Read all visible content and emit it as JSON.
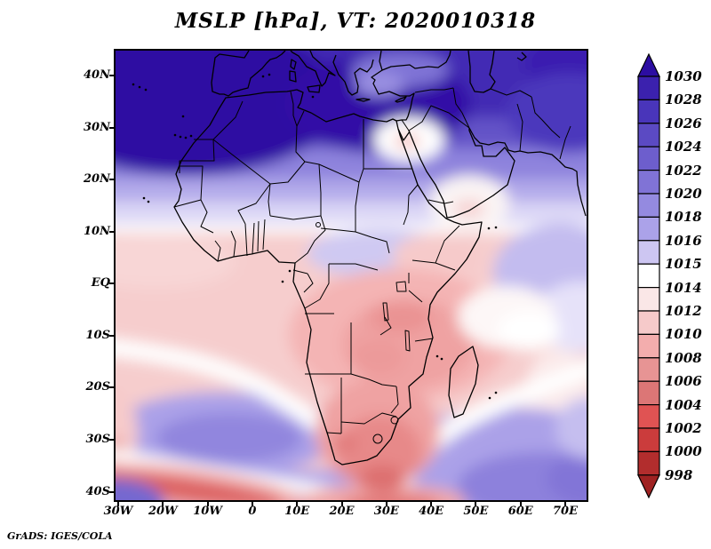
{
  "title": "MSLP [hPa], VT: 2020010318",
  "footer": "GrADS: IGES/COLA",
  "chart_data": {
    "type": "heatmap",
    "title": "MSLP [hPa], VT: 2020010318",
    "variable": "Mean Sea Level Pressure",
    "units": "hPa",
    "valid_time": "2020010318",
    "region": "Africa, southern Europe and Middle East (30W-75E, ~41S-45N)",
    "grid": "off",
    "legend_position": "right colorbar",
    "x_axis": {
      "ticks": [
        "30W",
        "20W",
        "10W",
        "0",
        "10E",
        "20E",
        "30E",
        "40E",
        "50E",
        "60E",
        "70E"
      ]
    },
    "y_axis": {
      "ticks": [
        "40N",
        "30N",
        "20N",
        "10N",
        "EQ",
        "10S",
        "20S",
        "30S",
        "40S"
      ]
    },
    "colorbar": {
      "labels_top_to_bottom": [
        "1030",
        "1028",
        "1026",
        "1024",
        "1022",
        "1020",
        "1018",
        "1016",
        "1015",
        "1014",
        "1012",
        "1010",
        "1008",
        "1006",
        "1004",
        "1002",
        "1000",
        "998"
      ],
      "levels_hPa": [
        998,
        1000,
        1002,
        1004,
        1006,
        1008,
        1010,
        1012,
        1014,
        1015,
        1016,
        1018,
        1020,
        1022,
        1024,
        1026,
        1028,
        1030
      ],
      "colors_top_to_bottom": [
        "#2c0da2",
        "#3b21ae",
        "#4935ba",
        "#5b4ac3",
        "#6d5ecd",
        "#8073d6",
        "#948ae0",
        "#aba2e9",
        "#cdc6f2",
        "#ffffff",
        "#fae7e7",
        "#f6caca",
        "#f3adad",
        "#e79494",
        "#dc7676",
        "#e05353",
        "#cb3c3c",
        "#b22d2d",
        "#9f2222"
      ]
    },
    "field_summary": [
      {
        "feature": "Subtropical high over NE Atlantic, Iberia and NW Africa",
        "approx_pressure_hPa": "1028-1032"
      },
      {
        "feature": "High pressure ridge over Middle East / Caspian region",
        "approx_pressure_hPa": "1022-1030"
      },
      {
        "feature": "Relative low over eastern Mediterranean near Cyprus",
        "approx_pressure_hPa": "1012-1015"
      },
      {
        "feature": "Relative low over central Arabian Peninsula",
        "approx_pressure_hPa": "1012-1015"
      },
      {
        "feature": "Broad heat low across equatorial and central Africa",
        "approx_pressure_hPa": "1006-1012"
      },
      {
        "feature": "Thermal low over southern African interior",
        "approx_pressure_hPa": "1004-1010"
      },
      {
        "feature": "South Atlantic subtropical high",
        "approx_pressure_hPa": "1018-1022"
      },
      {
        "feature": "South Indian Ocean subtropical high",
        "approx_pressure_hPa": "1018-1024"
      },
      {
        "feature": "Southern Ocean trough in southwest corner",
        "approx_pressure_hPa": "1000-1006"
      }
    ]
  }
}
